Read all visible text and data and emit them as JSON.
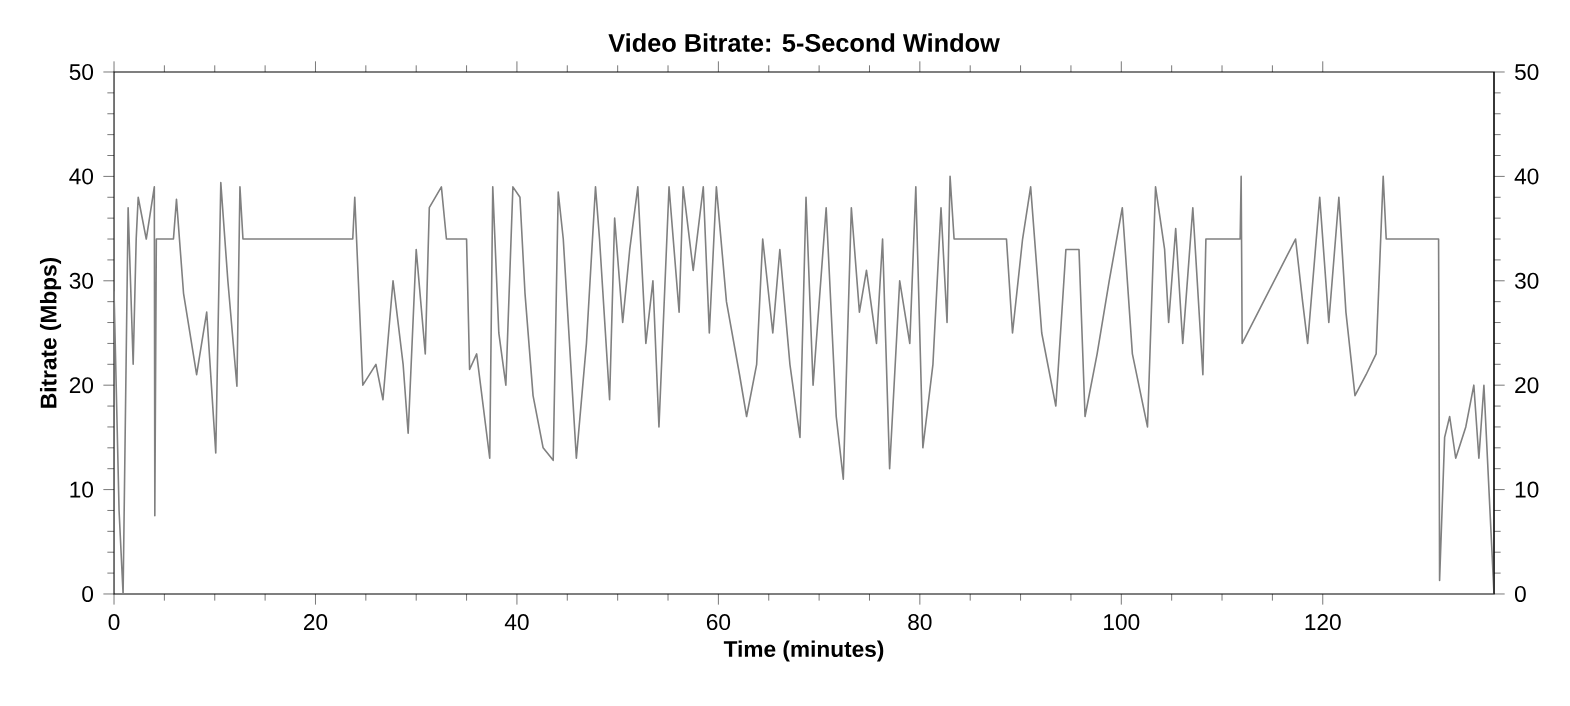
{
  "chart_data": {
    "type": "line",
    "title": "Video Bitrate: 5-Second Window",
    "xlabel": "Time (minutes)",
    "ylabel": "Bitrate (Mbps)",
    "x": [
      0,
      0.5,
      0.9,
      1.4,
      1.9,
      2.2,
      2.4,
      3.2,
      4.0,
      4.05,
      4.2,
      5.9,
      6.2,
      6.9,
      8.2,
      9.2,
      10.1,
      10.6,
      11.3,
      12.2,
      12.5,
      12.8,
      18.0,
      23.7,
      23.9,
      24.7,
      26.0,
      26.7,
      27.7,
      28.7,
      29.2,
      30.0,
      30.9,
      31.3,
      32.5,
      33.0,
      35.0,
      35.3,
      36.0,
      37.3,
      37.6,
      38.2,
      38.9,
      39.6,
      40.3,
      40.8,
      41.6,
      42.6,
      43.6,
      44.1,
      44.6,
      45.9,
      46.9,
      47.8,
      48.2,
      49.2,
      49.7,
      50.5,
      51.2,
      52.0,
      52.8,
      53.5,
      54.1,
      55.1,
      56.1,
      56.5,
      57.5,
      58.5,
      59.1,
      59.8,
      60.8,
      62.1,
      62.8,
      63.8,
      64.4,
      65.4,
      66.1,
      67.1,
      68.1,
      68.7,
      69.4,
      70.7,
      71.7,
      72.4,
      73.2,
      74.0,
      74.7,
      75.7,
      76.3,
      77.0,
      78.0,
      79.0,
      79.6,
      80.3,
      81.3,
      82.1,
      82.7,
      83.0,
      83.4,
      86.0,
      88.6,
      89.2,
      90.2,
      91.0,
      92.1,
      93.5,
      94.5,
      95.8,
      96.4,
      97.6,
      98.8,
      100.1,
      101.1,
      102.6,
      103.4,
      104.3,
      104.7,
      105.4,
      106.1,
      107.1,
      108.1,
      108.4,
      111.8,
      111.9,
      112.0,
      117.3,
      118.0,
      118.5,
      119.7,
      120.6,
      121.6,
      122.3,
      123.2,
      124.3,
      125.3,
      126.0,
      126.3,
      131.5,
      131.6,
      132.1,
      132.6,
      133.2,
      134.2,
      135.0,
      135.5,
      136.0,
      136.5,
      137.0
    ],
    "values": [
      29,
      8,
      0,
      37,
      22,
      34,
      38,
      34,
      39,
      7.5,
      34,
      34,
      37.8,
      28.8,
      21,
      27,
      13.5,
      39.4,
      30,
      19.9,
      39,
      34,
      34,
      34,
      38,
      20,
      22,
      18.6,
      30,
      22,
      15.4,
      33,
      23,
      37,
      39,
      34,
      34,
      21.5,
      23,
      13,
      39,
      25,
      20,
      39,
      38,
      28.8,
      19,
      14,
      12.8,
      38.5,
      34,
      13,
      24,
      39,
      34,
      18.6,
      36,
      26,
      33,
      39,
      24,
      30,
      16,
      39,
      27,
      39,
      31,
      39,
      25,
      39,
      28,
      21,
      17,
      22,
      34,
      25,
      33,
      22,
      15,
      38,
      20,
      37,
      17,
      11,
      37,
      27,
      31,
      24,
      34,
      12,
      30,
      24,
      39,
      14,
      22,
      37,
      26,
      40,
      34,
      34,
      34,
      25,
      34,
      39,
      25,
      18,
      33,
      33,
      17,
      23,
      30,
      37,
      23,
      16,
      39,
      33,
      26,
      35,
      24,
      37,
      21,
      34,
      34,
      40,
      24,
      34,
      28,
      24,
      38,
      26,
      38,
      27,
      19,
      21,
      23,
      40,
      34,
      34,
      1.3,
      15,
      17,
      13,
      16,
      20,
      13,
      20,
      10,
      0
    ],
    "color": "#808080",
    "xlim": [
      0,
      137
    ],
    "xticks": [
      0,
      20,
      40,
      60,
      80,
      100,
      120
    ],
    "ylim": [
      0,
      50
    ],
    "yticks": [
      0,
      10,
      20,
      30,
      40,
      50
    ],
    "y2lim": [
      0,
      50
    ],
    "y2ticks": [
      0,
      10,
      20,
      30,
      40,
      50
    ],
    "grid": false,
    "marker": "none",
    "line_style": "solid"
  }
}
